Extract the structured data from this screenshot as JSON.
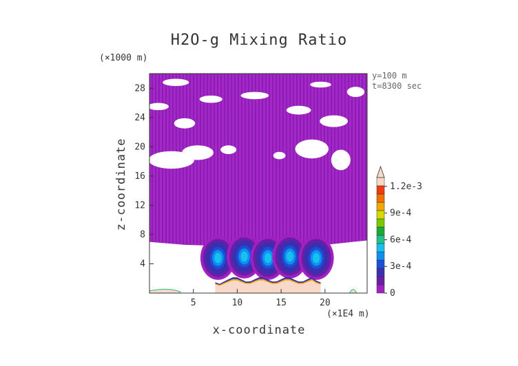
{
  "chart_data": {
    "type": "heatmap",
    "title": "H2O-g Mixing Ratio",
    "xlabel": "x-coordinate",
    "ylabel": "z-coordinate",
    "x_scale_note": "(×1E4 m)",
    "z_scale_note": "(×1000 m)",
    "annotations": [
      "y=100 m",
      "t=8300 sec"
    ],
    "xlim": [
      0,
      24.8
    ],
    "ylim": [
      0,
      30
    ],
    "x_ticks": [
      5,
      10,
      15,
      20
    ],
    "y_ticks": [
      4,
      8,
      12,
      16,
      20,
      24,
      28
    ],
    "colorbar": {
      "min": 0,
      "max": 0.0013,
      "tick_values": [
        0,
        0.0003,
        0.0006,
        0.0009,
        0.0012
      ],
      "tick_labels": [
        "0",
        "3e-4",
        "6e-4",
        "9e-4",
        "1.2e-3"
      ],
      "colors": [
        "#a020c0",
        "#6a1ea8",
        "#3b2fb0",
        "#1c4fd8",
        "#0f8ff0",
        "#18c0f0",
        "#22c08a",
        "#1ea838",
        "#7cc800",
        "#d8d800",
        "#f0a800",
        "#f07000",
        "#f03a10",
        "#f8d8c8"
      ]
    },
    "regions": [
      {
        "name": "upper-moist-layer",
        "x_range": [
          0,
          24.8
        ],
        "z_range": [
          6.5,
          30
        ],
        "level": 3e-05
      },
      {
        "name": "moist-core-1",
        "x_center": 7.8,
        "z_center": 4.8,
        "level": 0.0004
      },
      {
        "name": "moist-core-2",
        "x_center": 10.8,
        "z_center": 5.0,
        "level": 0.00038
      },
      {
        "name": "moist-core-3",
        "x_center": 13.5,
        "z_center": 4.8,
        "level": 0.00036
      },
      {
        "name": "moist-core-4",
        "x_center": 16.0,
        "z_center": 5.0,
        "level": 0.00034
      },
      {
        "name": "moist-core-5",
        "x_center": 19.0,
        "z_center": 4.8,
        "level": 0.00038
      },
      {
        "name": "surface-high-band",
        "x_range": [
          7.5,
          19.5
        ],
        "z_range": [
          0,
          2.2
        ],
        "level": 0.0013
      }
    ]
  }
}
